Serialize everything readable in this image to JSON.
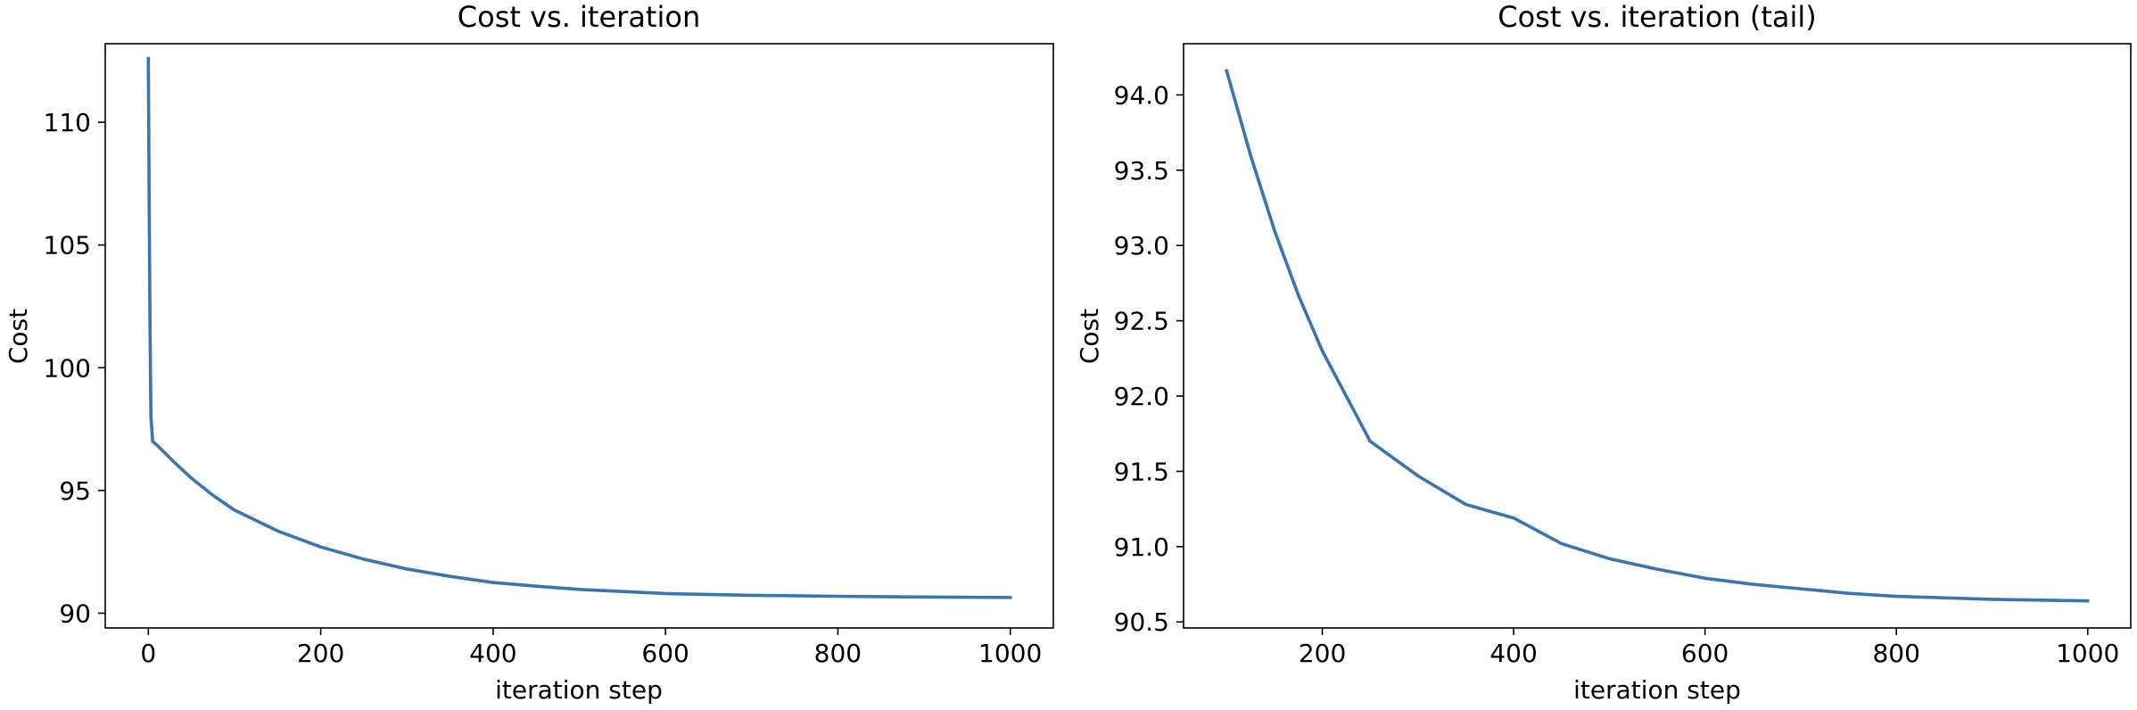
{
  "colors": {
    "series": "#3a75af",
    "axes": "#000000",
    "background": "#ffffff"
  },
  "chart_data": [
    {
      "type": "line",
      "title": "Cost vs. iteration",
      "xlabel": "iteration step",
      "ylabel": "Cost",
      "xlim": [
        -50,
        1050
      ],
      "ylim": [
        89.4,
        113.2
      ],
      "xticks": [
        0,
        200,
        400,
        600,
        800,
        1000
      ],
      "yticks": [
        90,
        95,
        100,
        105,
        110
      ],
      "grid": false,
      "legend": "none",
      "series": [
        {
          "x": [
            0,
            1,
            2,
            3,
            5,
            10,
            20,
            30,
            50,
            75,
            100,
            150,
            200,
            250,
            300,
            350,
            400,
            450,
            500,
            600,
            700,
            800,
            900,
            1000
          ],
          "y": [
            112.6,
            106.5,
            101.5,
            98.0,
            97.0,
            96.85,
            96.5,
            96.15,
            95.5,
            94.8,
            94.2,
            93.35,
            92.7,
            92.2,
            91.8,
            91.5,
            91.25,
            91.1,
            90.97,
            90.8,
            90.73,
            90.69,
            90.66,
            90.64
          ]
        }
      ]
    },
    {
      "type": "line",
      "title": "Cost vs. iteration (tail)",
      "xlabel": "iteration step",
      "ylabel": "Cost",
      "xlim": [
        55,
        1045
      ],
      "ylim": [
        90.46,
        94.34
      ],
      "xticks": [
        200,
        400,
        600,
        800,
        1000
      ],
      "yticks": [
        "90.5",
        "91.0",
        "91.5",
        "92.0",
        "92.5",
        "93.0",
        "93.5",
        "94.0"
      ],
      "grid": false,
      "legend": "none",
      "series": [
        {
          "x": [
            100,
            125,
            150,
            175,
            200,
            250,
            300,
            350,
            400,
            450,
            500,
            550,
            600,
            650,
            700,
            750,
            800,
            850,
            900,
            950,
            1000
          ],
          "y": [
            94.16,
            93.6,
            93.1,
            92.67,
            92.3,
            91.7,
            91.47,
            91.28,
            91.19,
            91.02,
            90.92,
            90.85,
            90.79,
            90.75,
            90.72,
            90.69,
            90.67,
            90.66,
            90.65,
            90.645,
            90.64
          ]
        }
      ]
    }
  ]
}
